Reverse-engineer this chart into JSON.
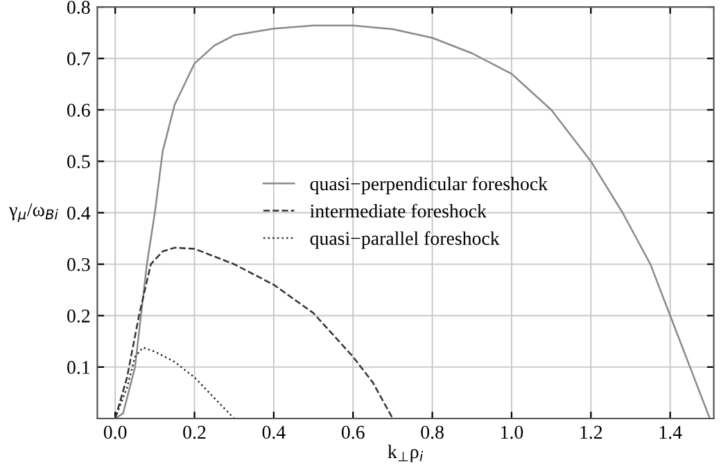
{
  "chart_data": {
    "type": "line",
    "xlabel": "k$_{⊥}$ρ$_{i}$",
    "ylabel": "γ$_{μ}$/ω$_{Bi}$",
    "xlim": [
      -0.045,
      1.51
    ],
    "ylim": [
      0,
      0.8
    ],
    "xticks": [
      {
        "value": 0,
        "label": "0.0"
      },
      0.2,
      0.4,
      0.6,
      0.8,
      {
        "value": 1,
        "label": "1.0"
      },
      1.2,
      1.4
    ],
    "yticks": [
      0.1,
      0.2,
      0.3,
      0.4,
      0.5,
      0.6,
      0.7,
      0.8
    ],
    "grid": true,
    "legend": "center",
    "series": [
      {
        "name": "quasi−perpendicular foreshock",
        "color": "#8a8a8a",
        "line_style": "solid",
        "x": [
          0.0,
          0.02,
          0.05,
          0.08,
          0.1,
          0.12,
          0.15,
          0.2,
          0.25,
          0.3,
          0.4,
          0.5,
          0.6,
          0.7,
          0.8,
          0.9,
          1.0,
          1.1,
          1.2,
          1.28,
          1.35,
          1.4,
          1.45,
          1.5
        ],
        "values": [
          0.0,
          0.01,
          0.1,
          0.3,
          0.4,
          0.52,
          0.61,
          0.69,
          0.725,
          0.745,
          0.758,
          0.764,
          0.764,
          0.757,
          0.74,
          0.71,
          0.67,
          0.6,
          0.5,
          0.4,
          0.3,
          0.2,
          0.1,
          0.0
        ]
      },
      {
        "name": "intermediate foreshock",
        "color": "#333333",
        "line_style": "dashed",
        "x": [
          0.0,
          0.03,
          0.06,
          0.09,
          0.12,
          0.15,
          0.2,
          0.3,
          0.4,
          0.5,
          0.6,
          0.65,
          0.7
        ],
        "values": [
          0.0,
          0.08,
          0.2,
          0.3,
          0.325,
          0.332,
          0.33,
          0.3,
          0.26,
          0.205,
          0.12,
          0.07,
          0.0
        ]
      },
      {
        "name": "quasi−parallel foreshock",
        "color": "#333333",
        "line_style": "dotted",
        "x": [
          0.0,
          0.03,
          0.05,
          0.07,
          0.1,
          0.15,
          0.2,
          0.25,
          0.3
        ],
        "values": [
          0.0,
          0.06,
          0.12,
          0.138,
          0.13,
          0.11,
          0.08,
          0.04,
          0.0
        ]
      }
    ]
  }
}
